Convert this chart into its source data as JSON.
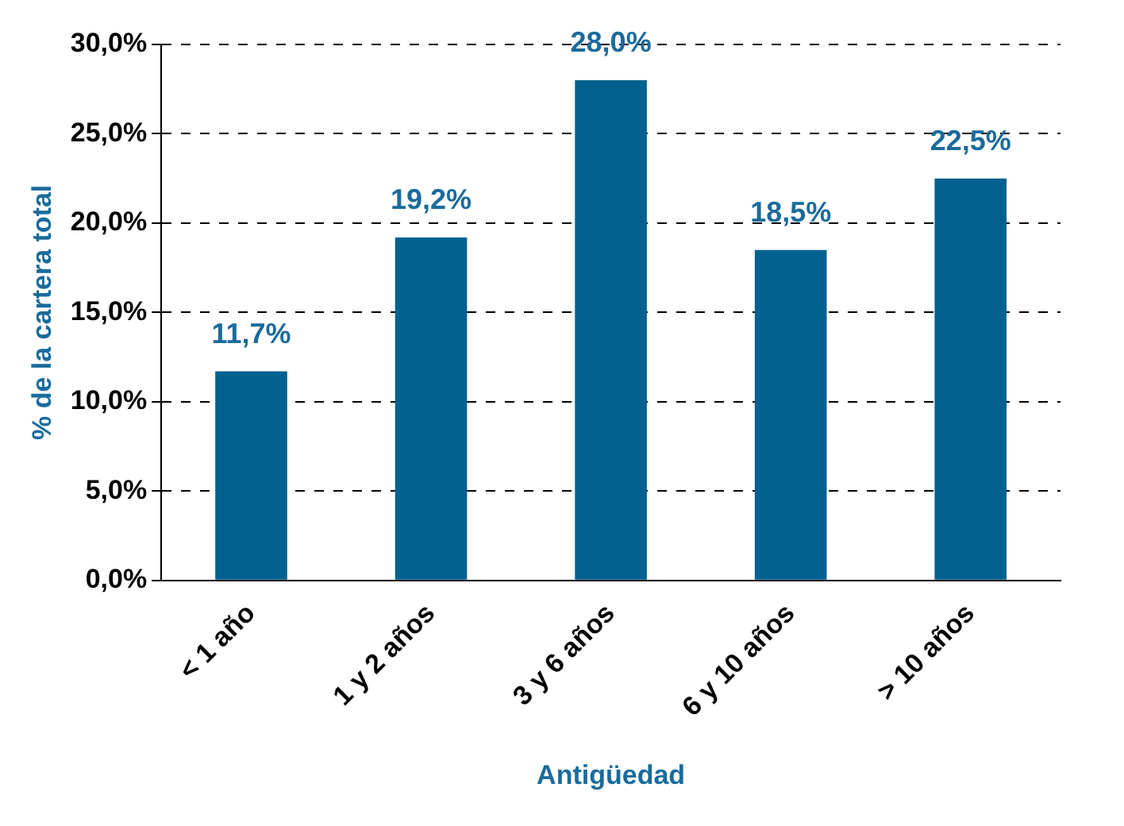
{
  "chart_data": {
    "type": "bar",
    "xlabel": "Antigüedad",
    "ylabel": "% de la cartera total",
    "categories": [
      "< 1 año",
      "1 y 2 años",
      "3 y 6 años",
      "6 y 10 años",
      "> 10 años"
    ],
    "values": [
      11.7,
      19.2,
      28.0,
      18.5,
      22.5
    ],
    "value_labels": [
      "11,7%",
      "19,2%",
      "28,0%",
      "18,5%",
      "22,5%"
    ],
    "color": "#03618f",
    "ylim": [
      0,
      30
    ],
    "yticks": [
      {
        "value": 0,
        "label": "0,0%"
      },
      {
        "value": 5,
        "label": "5,0%"
      },
      {
        "value": 10,
        "label": "10,0%"
      },
      {
        "value": 15,
        "label": "15,0%"
      },
      {
        "value": 20,
        "label": "20,0%"
      },
      {
        "value": 25,
        "label": "25,0%"
      },
      {
        "value": 30,
        "label": "30,0%"
      }
    ],
    "grid": "y",
    "legend": false
  }
}
